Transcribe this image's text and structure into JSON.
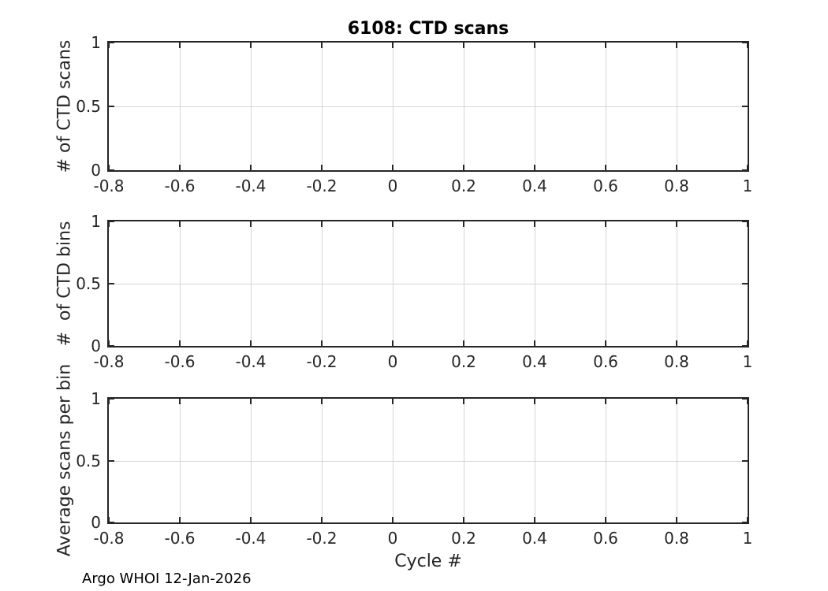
{
  "figure": {
    "title": "6108: CTD scans",
    "xlabel": "Cycle #",
    "footer": "Argo WHOI 12-Jan-2026",
    "background_color": "#ffffff",
    "axis_color": "#262626",
    "grid_color": "#d6d6d6",
    "text_color": "#262626"
  },
  "chart_data": [
    {
      "type": "line",
      "title": "6108: CTD scans",
      "xlabel": "",
      "ylabel": "# of CTD scans",
      "xlim": [
        -0.8,
        1
      ],
      "ylim": [
        0,
        1
      ],
      "xticks": [
        -0.8,
        -0.6,
        -0.4,
        -0.2,
        0,
        0.2,
        0.4,
        0.6,
        0.8,
        1
      ],
      "xtick_labels": [
        "-0.8",
        "-0.6",
        "-0.4",
        "-0.2",
        "0",
        "0.2",
        "0.4",
        "0.6",
        "0.8",
        "1"
      ],
      "yticks": [
        0,
        0.5,
        1
      ],
      "ytick_labels": [
        "0",
        "0.5",
        "1"
      ],
      "grid": true,
      "legend": null,
      "series": []
    },
    {
      "type": "line",
      "title": "",
      "xlabel": "",
      "ylabel": "#  of CTD bins",
      "xlim": [
        -0.8,
        1
      ],
      "ylim": [
        0,
        1
      ],
      "xticks": [
        -0.8,
        -0.6,
        -0.4,
        -0.2,
        0,
        0.2,
        0.4,
        0.6,
        0.8,
        1
      ],
      "xtick_labels": [
        "-0.8",
        "-0.6",
        "-0.4",
        "-0.2",
        "0",
        "0.2",
        "0.4",
        "0.6",
        "0.8",
        "1"
      ],
      "yticks": [
        0,
        0.5,
        1
      ],
      "ytick_labels": [
        "0",
        "0.5",
        "1"
      ],
      "grid": true,
      "legend": null,
      "series": []
    },
    {
      "type": "line",
      "title": "",
      "xlabel": "Cycle #",
      "ylabel": "Average scans per bin",
      "xlim": [
        -0.8,
        1
      ],
      "ylim": [
        0,
        1
      ],
      "xticks": [
        -0.8,
        -0.6,
        -0.4,
        -0.2,
        0,
        0.2,
        0.4,
        0.6,
        0.8,
        1
      ],
      "xtick_labels": [
        "-0.8",
        "-0.6",
        "-0.4",
        "-0.2",
        "0",
        "0.2",
        "0.4",
        "0.6",
        "0.8",
        "1"
      ],
      "yticks": [
        0,
        0.5,
        1
      ],
      "ytick_labels": [
        "0",
        "0.5",
        "1"
      ],
      "grid": true,
      "legend": null,
      "series": []
    }
  ]
}
